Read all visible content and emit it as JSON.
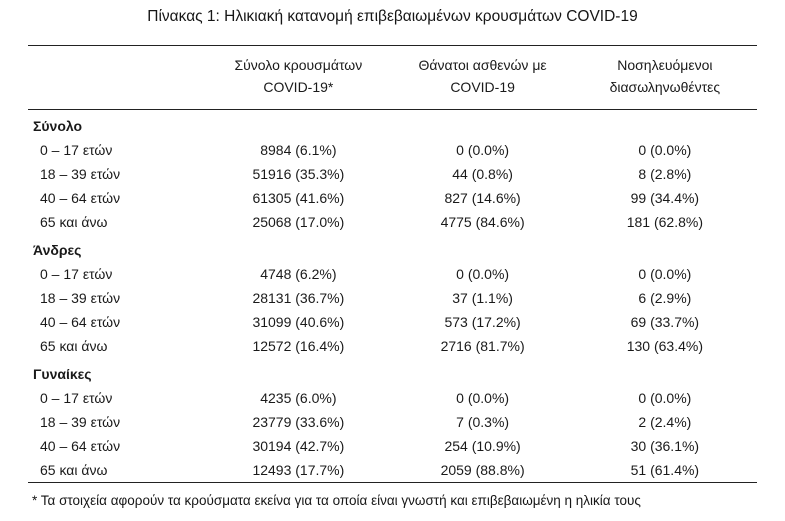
{
  "title": "Πίνακας 1: Ηλικιακή κατανομή επιβεβαιωμένων κρουσμάτων COVID-19",
  "table": {
    "columns": [
      {
        "line1": "Σύνολο κρουσμάτων",
        "line2": "COVID-19*"
      },
      {
        "line1": "Θάνατοι ασθενών με",
        "line2": "COVID-19"
      },
      {
        "line1": "Νοσηλευόμενοι",
        "line2": "διασωληνωθέντες"
      }
    ],
    "sections": [
      {
        "label": "Σύνολο",
        "rows": [
          {
            "age": "0 – 17 ετών",
            "cases": "8984 (6.1%)",
            "deaths": "0 (0.0%)",
            "intubated": "0 (0.0%)"
          },
          {
            "age": "18 – 39 ετών",
            "cases": "51916 (35.3%)",
            "deaths": "44 (0.8%)",
            "intubated": "8 (2.8%)"
          },
          {
            "age": "40 – 64 ετών",
            "cases": "61305 (41.6%)",
            "deaths": "827 (14.6%)",
            "intubated": "99 (34.4%)"
          },
          {
            "age": "65 και άνω",
            "cases": "25068 (17.0%)",
            "deaths": "4775 (84.6%)",
            "intubated": "181 (62.8%)"
          }
        ]
      },
      {
        "label": "Άνδρες",
        "rows": [
          {
            "age": "0 – 17 ετών",
            "cases": "4748 (6.2%)",
            "deaths": "0 (0.0%)",
            "intubated": "0 (0.0%)"
          },
          {
            "age": "18 – 39 ετών",
            "cases": "28131 (36.7%)",
            "deaths": "37 (1.1%)",
            "intubated": "6 (2.9%)"
          },
          {
            "age": "40 – 64 ετών",
            "cases": "31099 (40.6%)",
            "deaths": "573 (17.2%)",
            "intubated": "69 (33.7%)"
          },
          {
            "age": "65 και άνω",
            "cases": "12572 (16.4%)",
            "deaths": "2716 (81.7%)",
            "intubated": "130 (63.4%)"
          }
        ]
      },
      {
        "label": "Γυναίκες",
        "rows": [
          {
            "age": "0 – 17 ετών",
            "cases": "4235 (6.0%)",
            "deaths": "0 (0.0%)",
            "intubated": "0 (0.0%)"
          },
          {
            "age": "18 – 39 ετών",
            "cases": "23779 (33.6%)",
            "deaths": "7 (0.3%)",
            "intubated": "2 (2.4%)"
          },
          {
            "age": "40 – 64 ετών",
            "cases": "30194 (42.7%)",
            "deaths": "254 (10.9%)",
            "intubated": "30 (36.1%)"
          },
          {
            "age": "65 και άνω",
            "cases": "12493 (17.7%)",
            "deaths": "2059 (88.8%)",
            "intubated": "51 (61.4%)"
          }
        ]
      }
    ],
    "footnote": "* Τα στοιχεία αφορούν τα κρούσματα εκείνα για τα οποία είναι γνωστή και επιβεβαιωμένη η ηλικία τους"
  }
}
